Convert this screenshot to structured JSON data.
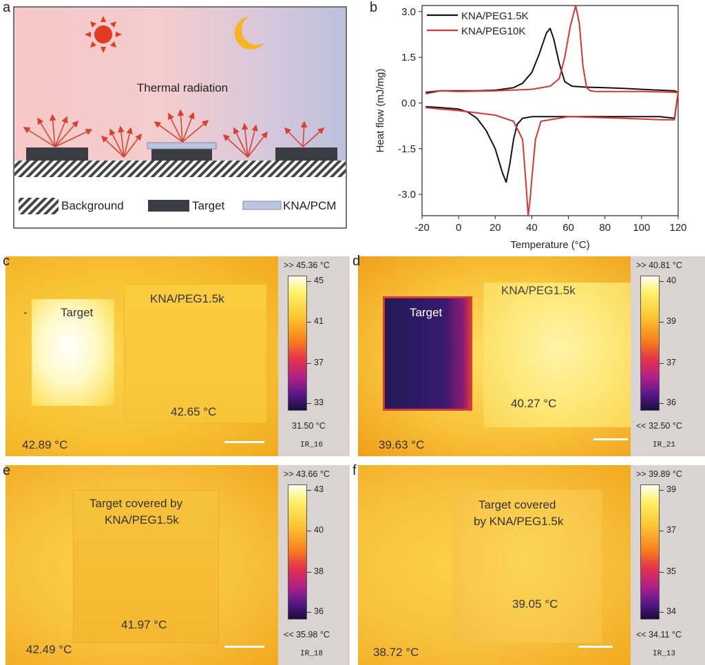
{
  "panel_a": {
    "label": "a",
    "title": "Thermal radiation",
    "legend": [
      "Background",
      "Target",
      "KNA/PCM"
    ]
  },
  "panel_b": {
    "label": "b",
    "chart_data": {
      "type": "line",
      "xlabel": "Temperature (°C)",
      "ylabel": "Heat flow (mJ/mg)",
      "xlim": [
        -20,
        120
      ],
      "ylim": [
        -3.7,
        3.2
      ],
      "x_ticks": [
        "-20",
        "0",
        "20",
        "40",
        "60",
        "80",
        "100",
        "120"
      ],
      "y_ticks": [
        "3.0",
        "1.5",
        "0.0",
        "-1.5",
        "-3.0"
      ],
      "legend_position": "top-left",
      "series": [
        {
          "name": "KNA/PEG1.5K",
          "color": "#111111",
          "x": [
            -18,
            -10,
            0,
            10,
            20,
            30,
            35,
            40,
            44,
            48,
            50,
            52,
            55,
            58,
            62,
            70,
            80,
            90,
            100,
            110,
            118,
            120,
            118,
            110,
            100,
            80,
            60,
            40,
            35,
            32,
            30,
            28,
            26,
            24,
            20,
            15,
            10,
            5,
            0,
            -10,
            -18
          ],
          "y": [
            0.35,
            0.4,
            0.4,
            0.4,
            0.42,
            0.5,
            0.65,
            1.0,
            1.6,
            2.3,
            2.45,
            2.1,
            1.3,
            0.7,
            0.55,
            0.52,
            0.5,
            0.48,
            0.45,
            0.42,
            0.4,
            0.35,
            -0.5,
            -0.45,
            -0.45,
            -0.45,
            -0.45,
            -0.45,
            -0.5,
            -0.7,
            -1.2,
            -2.0,
            -2.6,
            -2.3,
            -1.5,
            -0.9,
            -0.5,
            -0.3,
            -0.2,
            -0.15,
            -0.12
          ]
        },
        {
          "name": "KNA/PEG10K",
          "color": "#dd3333",
          "x": [
            -18,
            -10,
            0,
            20,
            40,
            50,
            55,
            58,
            61,
            64,
            66,
            68,
            70,
            72,
            75,
            80,
            100,
            120,
            118,
            110,
            90,
            60,
            45,
            42,
            40,
            39,
            38,
            37,
            35,
            30,
            20,
            0,
            -10,
            -18
          ],
          "y": [
            0.3,
            0.4,
            0.38,
            0.4,
            0.45,
            0.55,
            0.8,
            1.5,
            2.5,
            3.2,
            2.6,
            1.2,
            0.5,
            0.4,
            0.38,
            0.38,
            0.38,
            0.35,
            -0.55,
            -0.55,
            -0.5,
            -0.45,
            -0.6,
            -1.2,
            -2.5,
            -3.2,
            -3.7,
            -2.8,
            -1.2,
            -0.6,
            -0.4,
            -0.25,
            -0.2,
            -0.15
          ]
        }
      ]
    }
  },
  "panels_ir": [
    {
      "label": "c",
      "text1": "Target",
      "text2": "KNA/PEG1.5k",
      "text3": "42.65 °C",
      "bottom_temp": "42.89 °C",
      "dash": "-",
      "scale_top": ">> 45.36 °C",
      "scale_bottom": "31.50 °C",
      "scale_id": "IR_16",
      "ticks": [
        "45",
        "41",
        "37",
        "33"
      ]
    },
    {
      "label": "d",
      "text1": "Target",
      "text2": "KNA/PEG1.5k",
      "text3": "40.27 °C",
      "bottom_temp": "39.63 °C",
      "dash": "",
      "scale_top": ">> 40.81 °C",
      "scale_bottom": "<< 32.50 °C",
      "scale_id": "IR_21",
      "ticks": [
        "40",
        "39",
        "37",
        "36"
      ]
    },
    {
      "label": "e",
      "text1": "Target covered by",
      "text2": "KNA/PEG1.5k",
      "text3": "41.97 °C",
      "bottom_temp": "42.49 °C",
      "dash": "",
      "scale_top": ">> 43.66 °C",
      "scale_bottom": "<< 35.98 °C",
      "scale_id": "IR_18",
      "ticks": [
        "43",
        "40",
        "38",
        "36"
      ]
    },
    {
      "label": "f",
      "text1": "Target covered",
      "text2": "by KNA/PEG1.5k",
      "text3": "39.05 °C",
      "bottom_temp": "38.72 °C",
      "dash": "",
      "scale_top": ">> 39.89 °C",
      "scale_bottom": "<< 34.11 °C",
      "scale_id": "IR_13",
      "ticks": [
        "39",
        "37",
        "35",
        "34"
      ]
    }
  ]
}
